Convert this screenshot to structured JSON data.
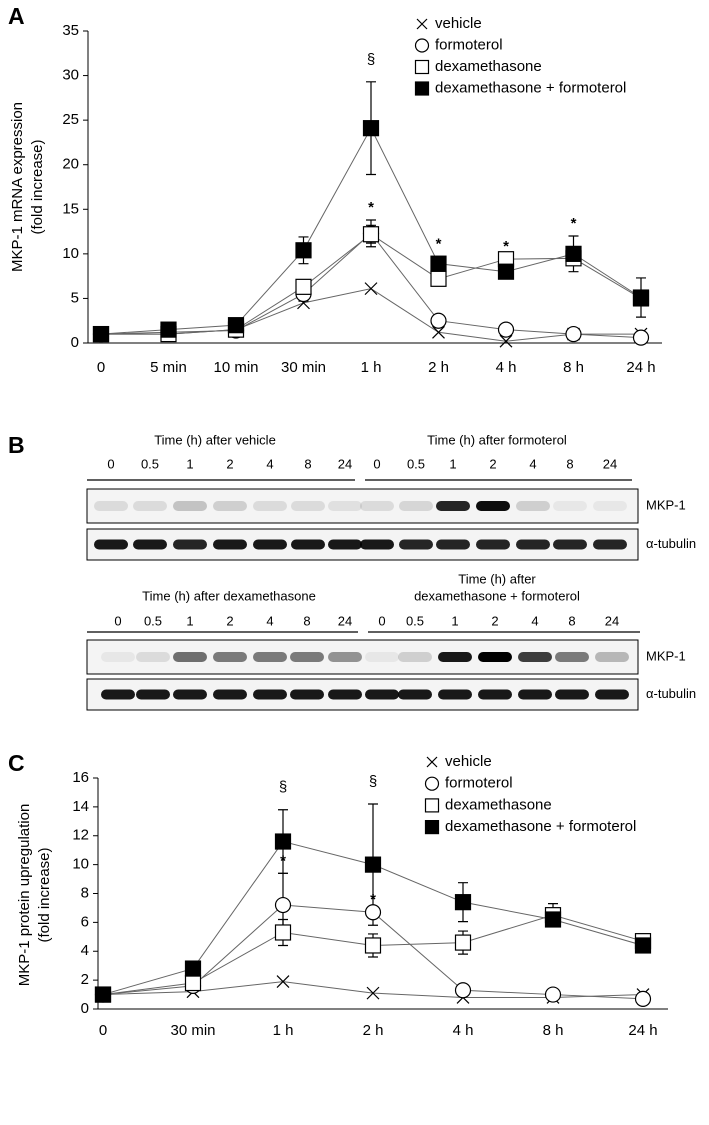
{
  "chart_data": [
    {
      "type": "line",
      "panel_label": "A",
      "y_label": [
        "MKP-1 mRNA expression",
        "(fold increase)"
      ],
      "categories": [
        "0",
        "5 min",
        "10 min",
        "30 min",
        "1 h",
        "2 h",
        "4 h",
        "8 h",
        "24 h"
      ],
      "ylim": [
        0,
        35
      ],
      "yticks": [
        0,
        5,
        10,
        15,
        20,
        25,
        30,
        35
      ],
      "grid": false,
      "legend": "top-right",
      "series": [
        {
          "name": "vehicle",
          "marker": "x",
          "color": "#666",
          "fill": "#000",
          "values": [
            1,
            1.0,
            1.5,
            4.5,
            6.1,
            1.2,
            0.2,
            1.0,
            1.0
          ],
          "errors": [
            null,
            null,
            null,
            null,
            null,
            null,
            null,
            null,
            null
          ]
        },
        {
          "name": "formoterol",
          "marker": "circle",
          "color": "#666",
          "fill": "#fff",
          "values": [
            1,
            1.2,
            1.4,
            5.5,
            12.3,
            2.5,
            1.5,
            1.0,
            0.6
          ],
          "errors": [
            null,
            null,
            null,
            0.8,
            1.5,
            null,
            null,
            null,
            null
          ]
        },
        {
          "name": "dexamethasone",
          "marker": "square",
          "color": "#666",
          "fill": "#fff",
          "values": [
            1,
            1.0,
            1.5,
            6.3,
            12.2,
            7.2,
            9.4,
            9.5,
            5.0
          ],
          "errors": [
            null,
            null,
            null,
            null,
            1.0,
            null,
            null,
            null,
            null
          ]
        },
        {
          "name": "dexamethasone + formoterol",
          "marker": "square",
          "color": "#666",
          "fill": "#000",
          "values": [
            1,
            1.5,
            2.0,
            10.4,
            24.1,
            8.9,
            8.0,
            10.0,
            5.1
          ],
          "errors": [
            null,
            0.3,
            0.3,
            1.5,
            5.2,
            0.8,
            null,
            2.0,
            2.2
          ]
        }
      ],
      "annotations": [
        {
          "text": "§",
          "x": "1 h",
          "series": "dexamethasone + formoterol"
        },
        {
          "text": "*",
          "x": "1 h",
          "series": "formoterol"
        },
        {
          "text": "*",
          "x": "2 h",
          "series": "dexamethasone + formoterol"
        },
        {
          "text": "*",
          "x": "4 h",
          "series": "dexamethasone"
        },
        {
          "text": "*",
          "x": "8 h",
          "series": "dexamethasone + formoterol"
        }
      ]
    },
    {
      "type": "line",
      "panel_label": "C",
      "y_label": [
        "MKP-1 protein upregulation",
        "(fold increase)"
      ],
      "categories": [
        "0",
        "30 min",
        "1 h",
        "2 h",
        "4 h",
        "8 h",
        "24 h"
      ],
      "ylim": [
        0,
        16
      ],
      "yticks": [
        0,
        2,
        4,
        6,
        8,
        10,
        12,
        14,
        16
      ],
      "grid": false,
      "legend": "top-right",
      "series": [
        {
          "name": "vehicle",
          "marker": "x",
          "color": "#666",
          "fill": "#000",
          "values": [
            1,
            1.2,
            1.9,
            1.1,
            0.8,
            0.8,
            1.0
          ],
          "errors": [
            null,
            null,
            null,
            null,
            null,
            null,
            null
          ]
        },
        {
          "name": "formoterol",
          "marker": "circle",
          "color": "#666",
          "fill": "#fff",
          "values": [
            1,
            1.6,
            7.2,
            6.7,
            1.3,
            1.0,
            0.7
          ],
          "errors": [
            null,
            null,
            2.2,
            null,
            null,
            null,
            null
          ]
        },
        {
          "name": "dexamethasone",
          "marker": "square",
          "color": "#666",
          "fill": "#fff",
          "values": [
            1,
            1.8,
            5.3,
            4.4,
            4.6,
            6.5,
            4.7
          ],
          "errors": [
            null,
            null,
            0.9,
            0.8,
            0.8,
            0.8,
            0.5
          ]
        },
        {
          "name": "dexamethasone + formoterol",
          "marker": "square",
          "color": "#666",
          "fill": "#000",
          "values": [
            1,
            2.8,
            11.6,
            10.0,
            7.4,
            6.2,
            4.4
          ],
          "errors": [
            null,
            0.5,
            2.2,
            4.2,
            1.35,
            null,
            null
          ]
        }
      ],
      "annotations": [
        {
          "text": "§",
          "x": "1 h",
          "series": "dexamethasone + formoterol"
        },
        {
          "text": "§",
          "x": "2 h",
          "series": "dexamethasone + formoterol"
        },
        {
          "text": "*",
          "x": "1 h",
          "series": "formoterol"
        },
        {
          "text": "*",
          "x": "2 h",
          "series": "formoterol"
        }
      ]
    }
  ],
  "blot": {
    "panel_label": "B",
    "rows": [
      {
        "groups": [
          {
            "title": [
              "Time (h) after vehicle"
            ],
            "lanes": [
              "0",
              "0.5",
              "1",
              "2",
              "4",
              "8",
              "24"
            ]
          },
          {
            "title": [
              "Time (h) after formoterol"
            ],
            "lanes": [
              "0",
              "0.5",
              "1",
              "2",
              "4",
              "8",
              "24"
            ]
          }
        ],
        "bands": [
          "MKP-1",
          "α-tubulin"
        ]
      },
      {
        "groups": [
          {
            "title": [
              "Time (h) after dexamethasone"
            ],
            "lanes": [
              "0",
              "0.5",
              "1",
              "2",
              "4",
              "8",
              "24"
            ]
          },
          {
            "title": [
              "Time (h) after",
              "dexamethasone + formoterol"
            ],
            "lanes": [
              "0",
              "0.5",
              "1",
              "2",
              "4",
              "8",
              "24"
            ]
          }
        ],
        "bands": [
          "MKP-1",
          "α-tubulin"
        ]
      }
    ]
  }
}
